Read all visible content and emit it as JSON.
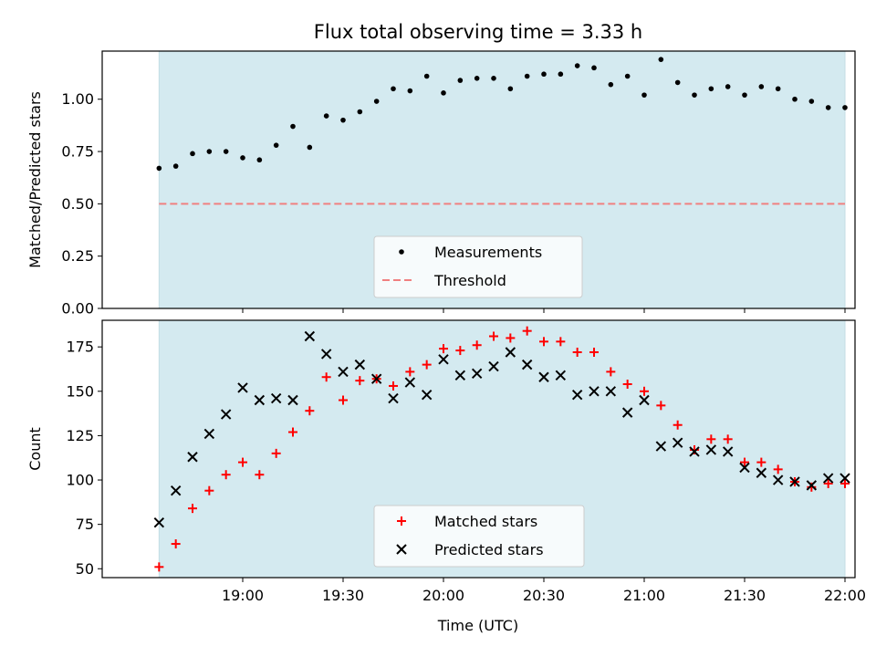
{
  "chart_data": {
    "title": "Flux total observing time = 3.33 h",
    "xlabel": "Time (UTC)",
    "x_tick_labels": [
      "19:00",
      "19:30",
      "20:00",
      "20:30",
      "21:00",
      "21:30",
      "22:00"
    ],
    "x_tick_minutes": [
      1140,
      1170,
      1200,
      1230,
      1260,
      1290,
      1320
    ],
    "xlim_minutes": [
      1098,
      1323
    ],
    "shaded_region_minutes": [
      1115,
      1320
    ],
    "shade_color": "#d4eaf0",
    "panels": [
      {
        "type": "scatter",
        "ylabel": "Matched/Predicted stars",
        "ylim": [
          0,
          1.23
        ],
        "y_ticks": [
          0,
          0.25,
          0.5,
          0.75,
          1.0
        ],
        "y_tick_labels": [
          "0.00",
          "0.25",
          "0.50",
          "0.75",
          "1.00"
        ],
        "series": [
          {
            "name": "Measurements",
            "marker": "dot",
            "color": "#000000",
            "x": [
              1115,
              1120,
              1125,
              1130,
              1135,
              1140,
              1145,
              1150,
              1155,
              1160,
              1165,
              1170,
              1175,
              1180,
              1185,
              1190,
              1195,
              1200,
              1205,
              1210,
              1215,
              1220,
              1225,
              1230,
              1235,
              1240,
              1245,
              1250,
              1255,
              1260,
              1265,
              1270,
              1275,
              1280,
              1285,
              1290,
              1295,
              1300,
              1305,
              1310,
              1315,
              1320
            ],
            "y": [
              0.67,
              0.68,
              0.74,
              0.75,
              0.75,
              0.72,
              0.71,
              0.78,
              0.87,
              0.77,
              0.92,
              0.9,
              0.94,
              0.99,
              1.05,
              1.04,
              1.11,
              1.03,
              1.09,
              1.1,
              1.1,
              1.05,
              1.11,
              1.12,
              1.12,
              1.16,
              1.15,
              1.07,
              1.11,
              1.02,
              1.19,
              1.08,
              1.02,
              1.05,
              1.06,
              1.02,
              1.06,
              1.05,
              1.0,
              0.99,
              0.96,
              0.96
            ]
          },
          {
            "name": "Threshold",
            "marker": "dashed-line",
            "color": "#f08080",
            "x": [
              1115,
              1320
            ],
            "y": [
              0.5,
              0.5
            ]
          }
        ],
        "legend_position": "bottom-center"
      },
      {
        "type": "scatter",
        "ylabel": "Count",
        "ylim": [
          45,
          190
        ],
        "y_ticks": [
          50,
          75,
          100,
          125,
          150,
          175
        ],
        "y_tick_labels": [
          "50",
          "75",
          "100",
          "125",
          "150",
          "175"
        ],
        "series": [
          {
            "name": "Matched stars",
            "marker": "plus",
            "color": "#ff0000",
            "x": [
              1115,
              1120,
              1125,
              1130,
              1135,
              1140,
              1145,
              1150,
              1155,
              1160,
              1165,
              1170,
              1175,
              1180,
              1185,
              1190,
              1195,
              1200,
              1205,
              1210,
              1215,
              1220,
              1225,
              1230,
              1235,
              1240,
              1245,
              1250,
              1255,
              1260,
              1265,
              1270,
              1275,
              1280,
              1285,
              1290,
              1295,
              1300,
              1305,
              1310,
              1315,
              1320
            ],
            "y": [
              51,
              64,
              84,
              94,
              103,
              110,
              103,
              115,
              127,
              139,
              158,
              145,
              156,
              157,
              153,
              161,
              165,
              174,
              173,
              176,
              181,
              180,
              184,
              178,
              178,
              172,
              172,
              161,
              154,
              150,
              142,
              131,
              117,
              123,
              123,
              110,
              110,
              106,
              99,
              96,
              98,
              98
            ]
          },
          {
            "name": "Predicted stars",
            "marker": "x",
            "color": "#000000",
            "x": [
              1115,
              1120,
              1125,
              1130,
              1135,
              1140,
              1145,
              1150,
              1155,
              1160,
              1165,
              1170,
              1175,
              1180,
              1185,
              1190,
              1195,
              1200,
              1205,
              1210,
              1215,
              1220,
              1225,
              1230,
              1235,
              1240,
              1245,
              1250,
              1255,
              1260,
              1265,
              1270,
              1275,
              1280,
              1285,
              1290,
              1295,
              1300,
              1305,
              1310,
              1315,
              1320
            ],
            "y": [
              76,
              94,
              113,
              126,
              137,
              152,
              145,
              146,
              145,
              181,
              171,
              161,
              165,
              157,
              146,
              155,
              148,
              168,
              159,
              160,
              164,
              172,
              165,
              158,
              159,
              148,
              150,
              150,
              138,
              145,
              119,
              121,
              116,
              117,
              116,
              107,
              104,
              100,
              99,
              97,
              101,
              101
            ]
          }
        ],
        "legend_position": "bottom-center"
      }
    ]
  }
}
